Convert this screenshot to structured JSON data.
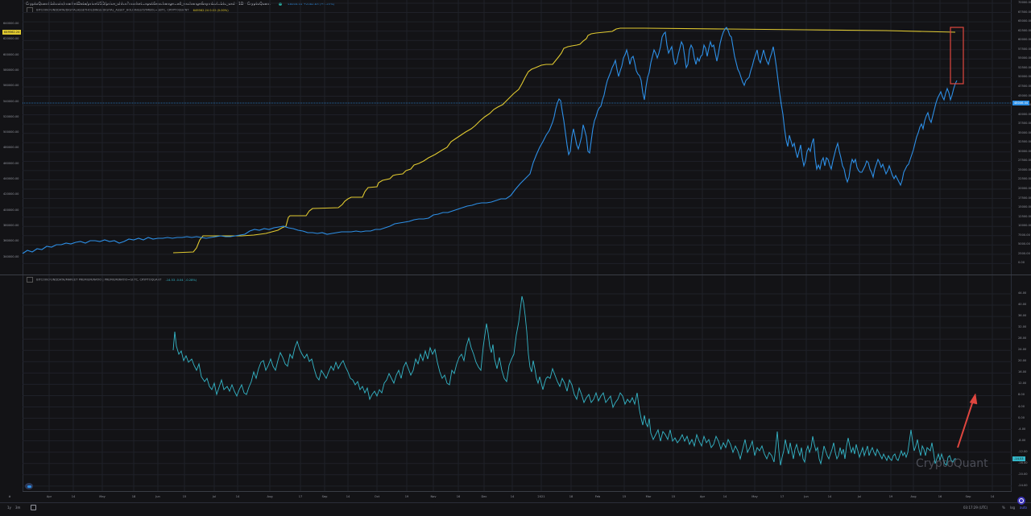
{
  "header": {
    "title": "CryptoQuant:bitcoin/marketData/priceUSD/price_ohlcv?market=spot&exchange=all_exchange&symbol=btc_usd",
    "interval": "1D",
    "source": "CryptoQuant",
    "price_value": "48046.44",
    "price_change": "+2082.83 (+4.53%)",
    "series2_label": "BITCOIN:FUNDDATA/DIGITALASSETHOLDINGS/DIGITAL_ASSET_HOLDINGS?SYMBOL=GBTC, CRYPTOQUANT",
    "series2_value": "649562.24 0.00 (0.00%)"
  },
  "lower_pane": {
    "label": "BITCOIN:FUNDDATA/MARKET PREMIUM/RATIO | PREMIUM/RATIO=GBTC, CRYPTOQUANT",
    "value": "-14.53 -0.04 (-0.28%)"
  },
  "left_axis": {
    "ticks": [
      "640000.00",
      "620000.00",
      "600000.00",
      "580000.00",
      "560000.00",
      "540000.00",
      "520000.00",
      "500000.00",
      "480000.00",
      "460000.00",
      "440000.00",
      "420000.00",
      "400000.00",
      "380000.00",
      "360000.00",
      "340000.00"
    ],
    "badge": "649562.24"
  },
  "right_axis_top": {
    "ticks": [
      "70000.00",
      "67500.00",
      "65000.00",
      "62500.00",
      "60000.00",
      "57500.00",
      "55000.00",
      "52500.00",
      "50000.00",
      "47500.00",
      "45000.00",
      "42500.00",
      "40000.00",
      "37500.00",
      "35000.00",
      "32500.00",
      "30000.00",
      "27500.00",
      "25000.00",
      "22500.00",
      "20000.00",
      "17500.00",
      "15000.00",
      "12500.00",
      "10000.00",
      "7500.00",
      "5000.00",
      "2500.00",
      "0.00"
    ],
    "badge": "48046.44"
  },
  "right_axis_bottom": {
    "ticks": [
      "44.00",
      "40.00",
      "36.00",
      "32.00",
      "28.00",
      "24.00",
      "20.00",
      "16.00",
      "12.00",
      "8.00",
      "4.00",
      "0.00",
      "-4.00",
      "-8.00",
      "-12.00",
      "-16.00",
      "-20.00",
      "-24.00"
    ],
    "badge": "-14.53"
  },
  "time_axis": {
    "labels": [
      "Apr",
      "14",
      "May",
      "18",
      "Jun",
      "15",
      "Jul",
      "14",
      "Aug",
      "17",
      "Sep",
      "14",
      "Oct",
      "19",
      "Nov",
      "16",
      "Dec",
      "14",
      "2021",
      "18",
      "Feb",
      "15",
      "Mar",
      "15",
      "Apr",
      "14",
      "May",
      "17",
      "Jun",
      "14",
      "Jul",
      "19",
      "Aug",
      "16",
      "Sep",
      "14"
    ]
  },
  "bottom_bar": {
    "range_1y": "1y",
    "range_3m": "3m",
    "time": "03:17:29 (UTC)",
    "percent": "%",
    "log": "log",
    "auto": "auto"
  },
  "watermark": "CryptoQuant",
  "colors": {
    "btc_price": "#2d8fe6",
    "gbtc_holdings": "#e0c930",
    "premium": "#34b6c8",
    "annotation": "#e0463f",
    "background": "#131316"
  },
  "chart_data": [
    {
      "type": "line",
      "title": "BTC price (USD) vs GBTC digital asset holdings",
      "x_range": [
        "Mar 2020",
        "Sep 2021"
      ],
      "series": [
        {
          "name": "BTC price USD (right axis)",
          "axis": "right",
          "x": [
            "2020-03",
            "2020-04",
            "2020-05",
            "2020-06",
            "2020-07",
            "2020-08",
            "2020-09",
            "2020-10",
            "2020-11",
            "2020-12",
            "2021-01",
            "2021-02",
            "2021-03",
            "2021-04",
            "2021-05",
            "2021-06",
            "2021-07",
            "2021-08",
            "2021-08-23"
          ],
          "values": [
            5800,
            7000,
            9000,
            9500,
            9300,
            11500,
            10800,
            11500,
            15500,
            23000,
            35000,
            48000,
            57000,
            58000,
            40000,
            35000,
            33000,
            45000,
            48046
          ]
        },
        {
          "name": "GBTC holdings (left axis)",
          "axis": "left",
          "x": [
            "2020-05",
            "2020-06",
            "2020-07",
            "2020-08",
            "2020-09",
            "2020-10",
            "2020-11",
            "2020-12",
            "2021-01",
            "2021-02",
            "2021-03",
            "2021-04",
            "2021-05",
            "2021-06",
            "2021-07",
            "2021-08",
            "2021-08-23"
          ],
          "values": [
            360000,
            375000,
            378000,
            385000,
            398000,
            440000,
            480000,
            540000,
            600000,
            645000,
            654000,
            655000,
            654000,
            653000,
            652000,
            650000,
            649562
          ]
        },
        {
          "name": "GBTC premium ratio (lower pane)",
          "axis": "lower",
          "x": [
            "2020-05",
            "2020-06",
            "2020-07",
            "2020-08",
            "2020-09",
            "2020-10",
            "2020-11",
            "2020-12",
            "2021-01",
            "2021-02",
            "2021-03",
            "2021-04",
            "2021-05",
            "2021-06",
            "2021-07",
            "2021-08",
            "2021-08-23"
          ],
          "values": [
            28,
            12,
            18,
            26,
            20,
            15,
            22,
            28,
            40,
            14,
            6,
            -5,
            -12,
            -10,
            -12,
            -10,
            -14.53
          ]
        }
      ],
      "ylim_right": [
        0,
        70000
      ],
      "ylim_left": [
        340000,
        650000
      ],
      "ylim_lower": [
        -24,
        44
      ],
      "annotations": [
        "red rectangle highlighting the gap between GBTC holdings and BTC price at latest date",
        "red upward arrow in lower pane pointing from current premium upward"
      ]
    }
  ]
}
